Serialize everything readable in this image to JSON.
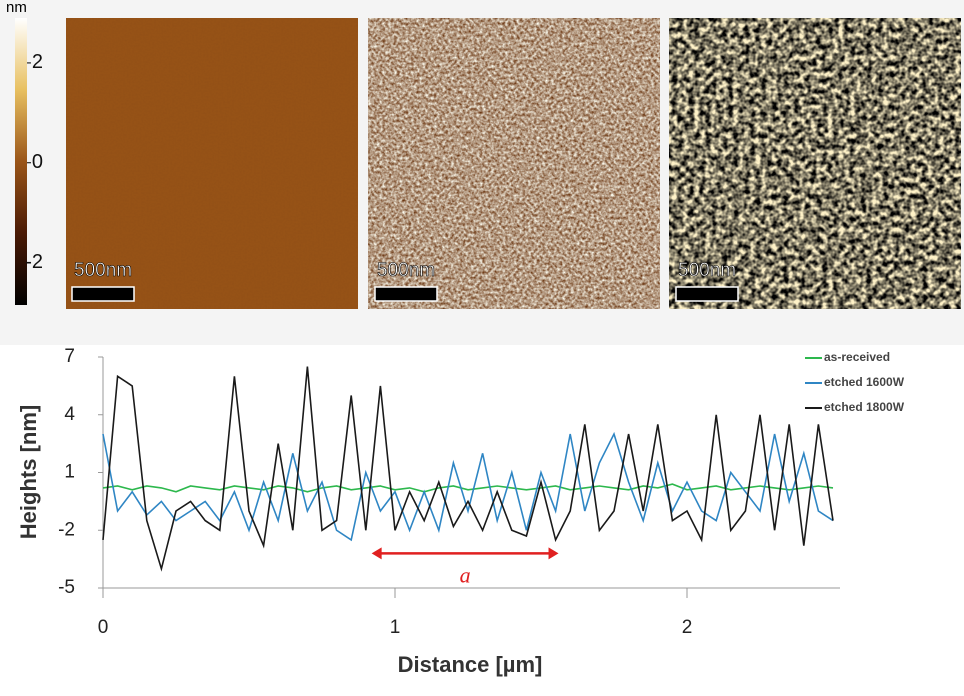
{
  "colorbar": {
    "unit": "nm",
    "lim": [
      -2.85,
      2.9
    ],
    "ticks": [
      2,
      0,
      -2
    ]
  },
  "images": [
    {
      "scale_label": "500nm"
    },
    {
      "scale_label": "500nm"
    },
    {
      "scale_label": "500nm"
    }
  ],
  "chart_data": {
    "type": "line",
    "xlabel": "Distance [µm]",
    "ylabel": "Heights [nm]",
    "x": [
      0,
      0.05,
      0.1,
      0.15,
      0.2,
      0.25,
      0.3,
      0.35,
      0.4,
      0.45,
      0.5,
      0.55,
      0.6,
      0.65,
      0.7,
      0.75,
      0.8,
      0.85,
      0.9,
      0.95,
      1,
      1.05,
      1.1,
      1.15,
      1.2,
      1.25,
      1.3,
      1.35,
      1.4,
      1.45,
      1.5,
      1.55,
      1.6,
      1.65,
      1.7,
      1.75,
      1.8,
      1.85,
      1.9,
      1.95,
      2,
      2.05,
      2.1,
      2.15,
      2.2,
      2.25,
      2.3,
      2.35,
      2.4,
      2.45,
      2.5
    ],
    "series": [
      {
        "name": "as-received",
        "color": "#2db84d",
        "values": [
          0.2,
          0.3,
          0.1,
          0.3,
          0.2,
          0.0,
          0.3,
          0.2,
          0.1,
          0.3,
          0.2,
          0.1,
          0.3,
          0.2,
          0.0,
          0.2,
          0.3,
          0.1,
          0.2,
          0.3,
          0.1,
          0.2,
          0.0,
          0.2,
          0.3,
          0.1,
          0.2,
          0.3,
          0.2,
          0.1,
          0.2,
          0.3,
          0.1,
          0.2,
          0.3,
          0.2,
          0.1,
          0.3,
          0.2,
          0.4,
          0.1,
          0.2,
          0.3,
          0.1,
          0.2,
          0.3,
          0.2,
          0.1,
          0.2,
          0.3,
          0.2
        ]
      },
      {
        "name": "etched 1600W",
        "color": "#2f86c4",
        "values": [
          3,
          -1,
          0,
          -1.2,
          -0.5,
          -1.5,
          -1,
          -0.5,
          -1.5,
          0,
          -2,
          0.5,
          -1.5,
          2,
          -1,
          0.5,
          -2,
          -2.5,
          1,
          -1,
          0,
          -2,
          0,
          -2,
          1.5,
          -1,
          2,
          -1.5,
          1,
          -2,
          1,
          -1,
          3,
          -1,
          1.5,
          3,
          0.5,
          -1.5,
          1.5,
          -1,
          0.5,
          -1,
          -1.5,
          1,
          0,
          -1,
          3,
          -0.5,
          2,
          -1,
          -1.5
        ]
      },
      {
        "name": "etched 1800W",
        "color": "#1a1a1a",
        "values": [
          -2.5,
          6,
          5.5,
          -1.5,
          -4,
          -1,
          -0.5,
          -1.5,
          -2,
          6,
          -1,
          -2.8,
          2.5,
          -2,
          6.5,
          -2,
          -1.5,
          5,
          -2,
          5.5,
          -2,
          0,
          -1.5,
          0.5,
          -1.8,
          -0.5,
          -2,
          0,
          -2,
          -2.3,
          0.5,
          -2.5,
          -1,
          3.5,
          -2,
          -1,
          3,
          -1,
          3.5,
          -1.5,
          -1,
          -2.5,
          4,
          -2,
          -1,
          4,
          -2,
          3.5,
          -2.8,
          3.5,
          -1.5
        ]
      }
    ],
    "xlim": [
      0,
      2.6
    ],
    "xticks": [
      0,
      1,
      2
    ],
    "ylim": [
      -5,
      7
    ],
    "yticks": [
      -5,
      -2,
      1,
      4,
      7
    ],
    "annotation": {
      "text": "a",
      "x": [
        0.92,
        1.56
      ],
      "y": -3.2
    }
  }
}
